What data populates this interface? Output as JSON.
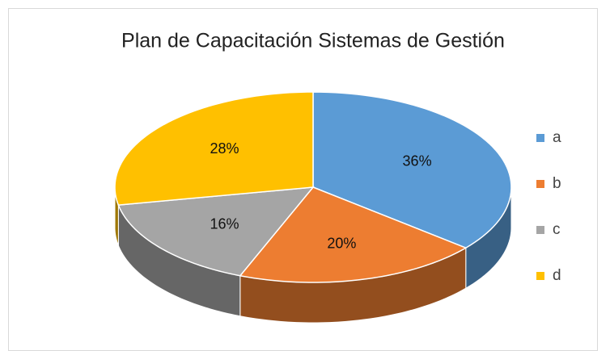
{
  "chart_data": {
    "type": "pie",
    "title": "Plan de Capacitación Sistemas de Gestión",
    "categories": [
      "a",
      "b",
      "c",
      "d"
    ],
    "values": [
      36,
      20,
      16,
      28
    ],
    "value_labels": [
      "36%",
      "20%",
      "16%",
      "28%"
    ],
    "colors": [
      "#5b9bd5",
      "#ed7d31",
      "#a5a5a5",
      "#ffc000"
    ],
    "legend": "right"
  }
}
